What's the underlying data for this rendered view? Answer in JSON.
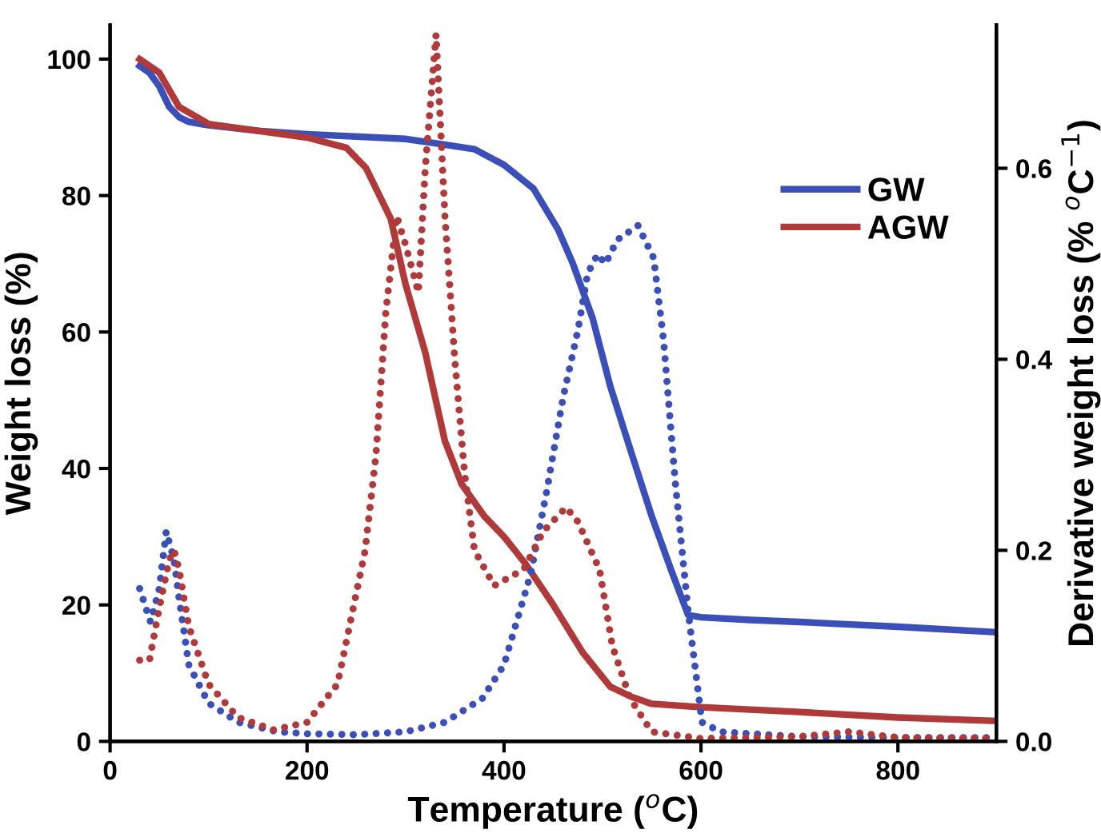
{
  "chart_data": {
    "type": "line",
    "xlabel": "Temperature ($^{o}$C)",
    "ylabel": "Weight loss (%)",
    "y2label": "Derivative weight loss (% $^{o}$C$^{−1}$)",
    "xlim": [
      0,
      900
    ],
    "xticks": [
      0,
      200,
      400,
      600,
      800
    ],
    "ylim": [
      0,
      105
    ],
    "yticks": [
      0,
      20,
      40,
      60,
      80,
      100
    ],
    "y2lim": [
      0,
      0.75
    ],
    "y2ticks": [
      {
        "value": 0,
        "label": "0.0"
      },
      0.2,
      0.4,
      0.6
    ],
    "legend": "upper right",
    "grid": false,
    "series": [
      {
        "name": "GW",
        "color": "#3b4fb8",
        "line_style": "solid",
        "x": [
          30,
          40,
          50,
          60,
          70,
          80,
          100,
          150,
          200,
          300,
          334,
          370,
          400,
          430,
          455,
          470,
          490,
          508,
          530,
          550,
          570,
          587,
          600,
          650,
          700,
          800,
          900
        ],
        "values": [
          99,
          98,
          96,
          93,
          91.5,
          90.8,
          90.3,
          89.5,
          89,
          88.3,
          87.6,
          86.8,
          84.5,
          81,
          75,
          70,
          62,
          52,
          42,
          33,
          25,
          18.5,
          18.2,
          17.8,
          17.5,
          16.8,
          16
        ]
      },
      {
        "name": "AGW",
        "color": "#b03a3a",
        "line_style": "solid",
        "x": [
          30,
          50,
          70,
          100,
          150,
          200,
          240,
          260,
          285,
          300,
          320,
          340,
          357,
          380,
          400,
          422,
          450,
          480,
          508,
          530,
          550,
          600,
          700,
          800,
          900
        ],
        "values": [
          100,
          98,
          93,
          90.5,
          89.5,
          88.5,
          87,
          84,
          76.6,
          67,
          57,
          44,
          37.7,
          33,
          30,
          26,
          20,
          13,
          8,
          6.5,
          5.5,
          5,
          4.3,
          3.5,
          3
        ]
      },
      {
        "color": "#3b4fb8",
        "line_style": "dotted",
        "axis": "y2",
        "x": [
          30,
          41,
          50,
          57,
          65,
          70,
          80,
          100,
          130,
          170,
          200,
          250,
          300,
          340,
          378,
          400,
          427,
          443,
          460,
          475,
          485,
          495,
          503,
          515,
          536,
          552,
          562,
          574,
          587,
          601,
          620,
          700,
          800,
          900
        ],
        "values": [
          0.16,
          0.125,
          0.16,
          0.22,
          0.19,
          0.15,
          0.08,
          0.04,
          0.02,
          0.01,
          0.008,
          0.007,
          0.01,
          0.02,
          0.045,
          0.08,
          0.175,
          0.26,
          0.36,
          0.43,
          0.49,
          0.51,
          0.5,
          0.525,
          0.54,
          0.506,
          0.42,
          0.27,
          0.136,
          0.02,
          0.01,
          0.005,
          0.004,
          0.004
        ]
      },
      {
        "color": "#b03a3a",
        "line_style": "dotted",
        "axis": "y2",
        "x": [
          30,
          40,
          50,
          60,
          65,
          70,
          80,
          100,
          130,
          166,
          200,
          231,
          259,
          270,
          280,
          291,
          300,
          313,
          320,
          331,
          340,
          350,
          360,
          370,
          390,
          420,
          440,
          463,
          475,
          497,
          510,
          528,
          550,
          600,
          700,
          750,
          800,
          900
        ],
        "values": [
          0.085,
          0.085,
          0.14,
          0.19,
          0.2,
          0.18,
          0.12,
          0.06,
          0.025,
          0.012,
          0.02,
          0.06,
          0.2,
          0.3,
          0.45,
          0.55,
          0.52,
          0.47,
          0.6,
          0.74,
          0.55,
          0.4,
          0.28,
          0.2,
          0.163,
          0.18,
          0.22,
          0.245,
          0.23,
          0.18,
          0.1,
          0.045,
          0.01,
          0.003,
          0.005,
          0.01,
          0.004,
          0.003
        ]
      }
    ]
  }
}
